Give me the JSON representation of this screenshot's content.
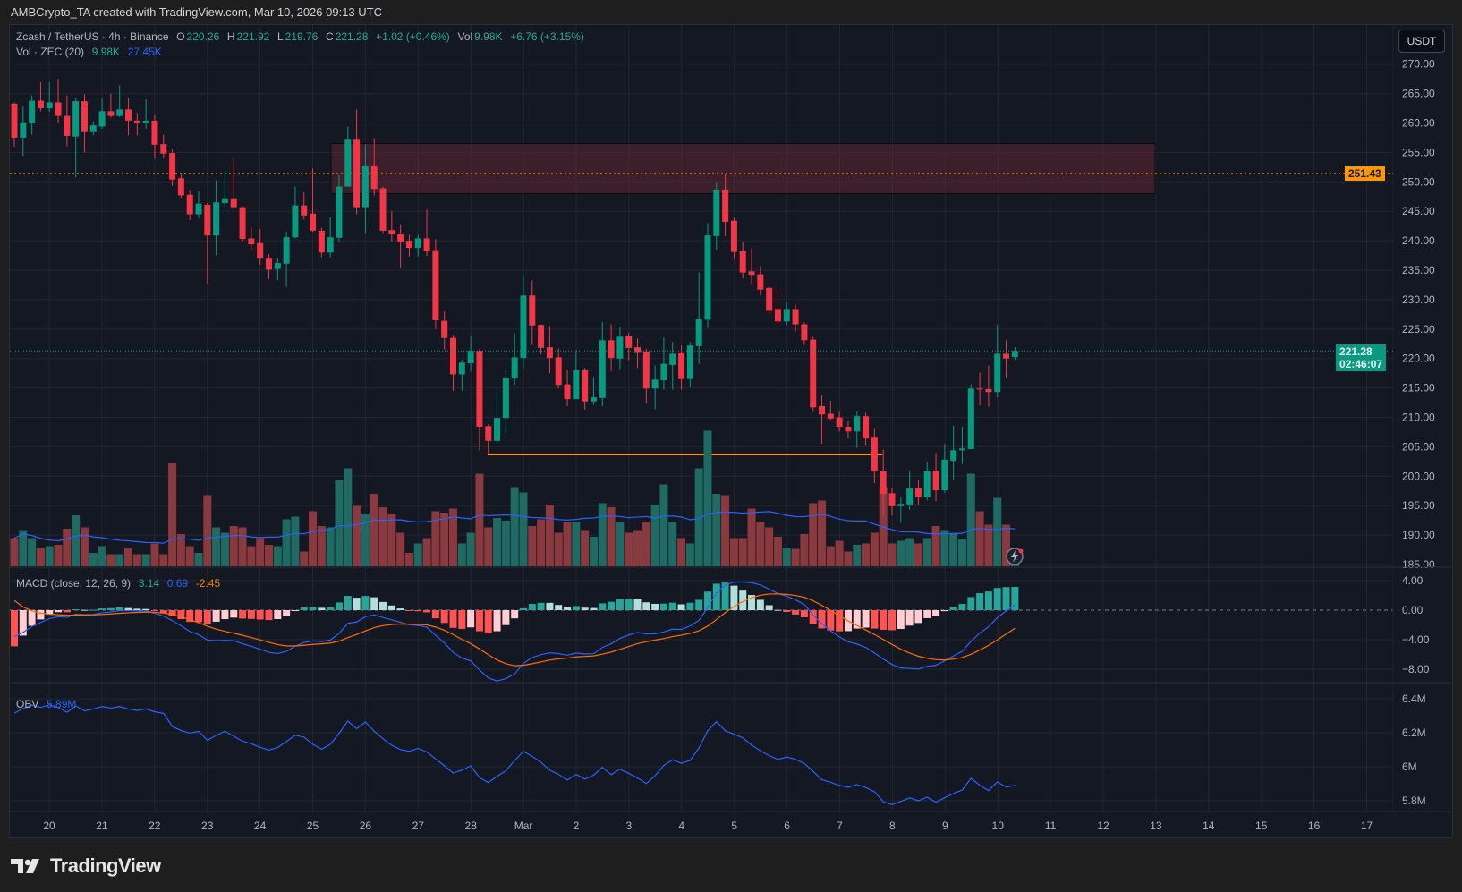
{
  "attribution": "AMBCrypto_TA created with TradingView.com, Mar 10, 2026 09:13 UTC",
  "legend": {
    "symbol": "Zcash / TetherUS · 4h · Binance",
    "o_label": "O",
    "o": "220.26",
    "h_label": "H",
    "h": "221.92",
    "l_label": "L",
    "l": "219.76",
    "c_label": "C",
    "c": "221.28",
    "change": "+1.02 (+0.46%)",
    "vol_label": "Vol",
    "vol": "9.98K",
    "vol_change": "+6.76 (+3.15%)",
    "vol_study": "Vol · ZEC (20)",
    "vol_value": "9.98K",
    "vol_ma": "27.45K"
  },
  "macd_legend": {
    "label": "MACD (close, 12, 26, 9)",
    "hist": "3.14",
    "macd": "0.69",
    "signal": "-2.45"
  },
  "obv_legend": {
    "label": "OBV",
    "value": "5.89M"
  },
  "currency_button": "USDT",
  "price_labels": {
    "hline": "251.43",
    "last": "221.28",
    "countdown": "02:46:07"
  },
  "brand": "TradingView",
  "colors": {
    "up": "#089981",
    "down": "#f23645",
    "vol_up": "#1f6b63",
    "vol_down": "#8a3a3e",
    "vol_ma": "#2962ff",
    "macd": "#2962ff",
    "signal": "#ff6d00",
    "obv": "#2962ff",
    "hline": "#ff9800",
    "zone": "#4a2230",
    "last_price": "#089981"
  },
  "chart_data": {
    "type": "candlestick",
    "interval": "4h",
    "price_axis": {
      "ticks": [
        "270.00",
        "265.00",
        "260.00",
        "255.00",
        "250.00",
        "245.00",
        "240.00",
        "235.00",
        "230.00",
        "225.00",
        "220.00",
        "215.00",
        "210.00",
        "205.00",
        "200.00",
        "195.00",
        "190.00",
        "185.00"
      ],
      "range": [
        185,
        270
      ]
    },
    "macd_axis": {
      "ticks": [
        "4.00",
        "0.00",
        "-4.00",
        "-8.00"
      ],
      "range": [
        -10,
        5
      ]
    },
    "obv_axis": {
      "ticks": [
        "6.4M",
        "6.2M",
        "6M",
        "5.8M"
      ],
      "range": [
        5.75,
        6.45
      ]
    },
    "time_axis": [
      "20",
      "21",
      "22",
      "23",
      "24",
      "25",
      "26",
      "27",
      "28",
      "Mar",
      "2",
      "3",
      "4",
      "5",
      "6",
      "7",
      "8",
      "9",
      "10",
      "11",
      "12",
      "13",
      "14",
      "15",
      "16",
      "17"
    ],
    "ohlc": [
      [
        263.3,
        263.5,
        256,
        257.5
      ],
      [
        257.5,
        262.8,
        254.4,
        260.1
      ],
      [
        260,
        264.7,
        258,
        263.8
      ],
      [
        263.8,
        266.9,
        262,
        262.5
      ],
      [
        262.5,
        266.9,
        261.9,
        263.5
      ],
      [
        263.5,
        267.5,
        260,
        261.2
      ],
      [
        261.2,
        264.7,
        256,
        257.8
      ],
      [
        257.7,
        264.3,
        250.8,
        263.7
      ],
      [
        263.7,
        264.9,
        255,
        258.6
      ],
      [
        258.6,
        260.3,
        257.9,
        259.6
      ],
      [
        259.4,
        264.2,
        259,
        262
      ],
      [
        262,
        265,
        260.9,
        261.2
      ],
      [
        261.2,
        266.4,
        261,
        262.3
      ],
      [
        262.3,
        264.2,
        257.9,
        260.4
      ],
      [
        260.4,
        261.7,
        257.9,
        260
      ],
      [
        260,
        264,
        259,
        260.4
      ],
      [
        260.4,
        261.3,
        253.9,
        256.3
      ],
      [
        256.4,
        258,
        254,
        254.8
      ],
      [
        254.9,
        255.5,
        249.3,
        250.4
      ],
      [
        250.6,
        251.3,
        247.3,
        247.7
      ],
      [
        247.8,
        248.6,
        243.5,
        244.5
      ],
      [
        244.5,
        248.4,
        243.8,
        246.3
      ],
      [
        246.1,
        246.4,
        232.7,
        240.9
      ],
      [
        240.9,
        250.3,
        237.5,
        246.5
      ],
      [
        246.4,
        252.3,
        245.4,
        247.2
      ],
      [
        247.2,
        254,
        245.3,
        245.7
      ],
      [
        245.7,
        245.9,
        239.7,
        240.3
      ],
      [
        240.4,
        242.3,
        238.5,
        239.4
      ],
      [
        239.6,
        242,
        235.9,
        237.1
      ],
      [
        237.1,
        237.7,
        233.5,
        235.1
      ],
      [
        235.2,
        237.1,
        233.3,
        236.2
      ],
      [
        236.1,
        241.5,
        232.2,
        240.6
      ],
      [
        240.6,
        249.2,
        240.4,
        246
      ],
      [
        246,
        248.2,
        243.6,
        244.3
      ],
      [
        244.6,
        252.3,
        241.5,
        241.7
      ],
      [
        241.7,
        242.2,
        237.2,
        238
      ],
      [
        238,
        244,
        237.2,
        240.6
      ],
      [
        240.5,
        251.2,
        239.7,
        249.2
      ],
      [
        249.2,
        259.4,
        249.2,
        257.3
      ],
      [
        257.3,
        262.3,
        244.5,
        245.7
      ],
      [
        245.7,
        256.4,
        241.3,
        252.8
      ],
      [
        252.8,
        257.4,
        247.7,
        248.8
      ],
      [
        248.9,
        249.2,
        241.3,
        241.7
      ],
      [
        241.8,
        245,
        239.8,
        241.1
      ],
      [
        241.2,
        242.8,
        235.4,
        239.8
      ],
      [
        240,
        241,
        237.3,
        238.8
      ],
      [
        238.8,
        241,
        237.3,
        240.4
      ],
      [
        240.4,
        245.3,
        237.4,
        238.3
      ],
      [
        238.4,
        240.3,
        225,
        226.5
      ],
      [
        226.4,
        228,
        221.5,
        223.5
      ],
      [
        223.5,
        224,
        214.5,
        217.3
      ],
      [
        217.3,
        219.8,
        214.5,
        219.3
      ],
      [
        219.2,
        223.8,
        217.8,
        221.3
      ],
      [
        221.3,
        221.6,
        204.4,
        208.4
      ],
      [
        208.5,
        208.8,
        203.8,
        206
      ],
      [
        206,
        214.7,
        205.5,
        209.9
      ],
      [
        209.9,
        218.4,
        207.2,
        216.7
      ],
      [
        216.6,
        224.3,
        215.5,
        220.2
      ],
      [
        220.1,
        233.9,
        218.3,
        230.7
      ],
      [
        230.7,
        233.3,
        222.3,
        225.6
      ],
      [
        225.7,
        225.8,
        220.7,
        221.8
      ],
      [
        221.9,
        225.5,
        217.5,
        220.1
      ],
      [
        220.2,
        221.7,
        214.9,
        215.5
      ],
      [
        215.6,
        218.1,
        211.9,
        213.1
      ],
      [
        213.1,
        221.4,
        213.1,
        218
      ],
      [
        218,
        218.4,
        211.3,
        212.7
      ],
      [
        212.7,
        216.9,
        212.1,
        213.4
      ],
      [
        213.3,
        226.2,
        211.9,
        223.1
      ],
      [
        223.1,
        225.8,
        217.8,
        220.1
      ],
      [
        220,
        225.4,
        218.2,
        223.7
      ],
      [
        223.8,
        224.4,
        219.7,
        221.8
      ],
      [
        221.9,
        223.4,
        218.4,
        221.1
      ],
      [
        221.2,
        221.6,
        212.5,
        214.9
      ],
      [
        214.9,
        218.8,
        211.4,
        216.4
      ],
      [
        216.3,
        223.6,
        214.7,
        219.1
      ],
      [
        218.9,
        222.8,
        214.7,
        220.8
      ],
      [
        221,
        222.2,
        214.7,
        216.5
      ],
      [
        216.5,
        222.8,
        215.2,
        222.2
      ],
      [
        222.1,
        234.6,
        219.1,
        226.7
      ],
      [
        226.6,
        243,
        225.2,
        240.9
      ],
      [
        240.8,
        250,
        238.5,
        248.7
      ],
      [
        248.7,
        251.3,
        240.8,
        243.2
      ],
      [
        243.4,
        244,
        237,
        238.1
      ],
      [
        238.3,
        239.8,
        233.6,
        234.6
      ],
      [
        234.8,
        238.7,
        232.7,
        234.2
      ],
      [
        234.3,
        235.7,
        230.8,
        231.7
      ],
      [
        232,
        232,
        227.5,
        228.1
      ],
      [
        228.4,
        232,
        225.5,
        226.3
      ],
      [
        226.3,
        229.5,
        225.7,
        228.4
      ],
      [
        228.4,
        229.1,
        224.6,
        225.8
      ],
      [
        225.8,
        226.1,
        222.3,
        223.1
      ],
      [
        223.2,
        223.7,
        211.1,
        211.7
      ],
      [
        211.9,
        213.7,
        205.5,
        210.5
      ],
      [
        210.6,
        212.8,
        209.6,
        209.8
      ],
      [
        210,
        211.1,
        207.6,
        208.4
      ],
      [
        208.4,
        209.5,
        206.4,
        207.6
      ],
      [
        207.6,
        211.1,
        204.8,
        210.2
      ],
      [
        210.2,
        210.8,
        205.3,
        206.4
      ],
      [
        206.7,
        208.2,
        198.8,
        200.8
      ],
      [
        200.9,
        204.5,
        193.3,
        197
      ],
      [
        197.1,
        198,
        193.3,
        194.9
      ],
      [
        194.9,
        196.5,
        192.1,
        195.3
      ],
      [
        195.2,
        200.8,
        194.3,
        197.9
      ],
      [
        197.9,
        199.4,
        195.2,
        196.4
      ],
      [
        196.4,
        202.5,
        195.9,
        200.9
      ],
      [
        200.9,
        204,
        195.8,
        197.6
      ],
      [
        197.6,
        205.5,
        197.2,
        202.8
      ],
      [
        202.6,
        208.6,
        199.4,
        204.4
      ],
      [
        204.4,
        208.4,
        202.1,
        204.7
      ],
      [
        204.6,
        215.6,
        204.6,
        214.9
      ],
      [
        214.9,
        217.6,
        212,
        214.8
      ],
      [
        214.8,
        218.8,
        211.8,
        214.3
      ],
      [
        214.3,
        225.7,
        213.4,
        220.8
      ],
      [
        220.8,
        223.1,
        216.7,
        220
      ],
      [
        220.26,
        221.92,
        219.76,
        221.28
      ]
    ],
    "volume_k": [
      21,
      27,
      21,
      14,
      15,
      16,
      28,
      38,
      29,
      10,
      15,
      9,
      9,
      14,
      9,
      9,
      17,
      9,
      77,
      24,
      15,
      10,
      53,
      29,
      25,
      30,
      29,
      15,
      21,
      16,
      15,
      35,
      37,
      11,
      41,
      30,
      29,
      64,
      73,
      45,
      39,
      54,
      44,
      39,
      25,
      10,
      17,
      21,
      41,
      40,
      43,
      17,
      25,
      69,
      29,
      36,
      34,
      59,
      55,
      30,
      35,
      46,
      25,
      33,
      33,
      27,
      22,
      47,
      44,
      33,
      25,
      27,
      33,
      46,
      61,
      33,
      21,
      17,
      73,
      101,
      54,
      53,
      21,
      21,
      43,
      33,
      29,
      22,
      14,
      13,
      24,
      47,
      49,
      15,
      19,
      11,
      16,
      17,
      25,
      59,
      17,
      19,
      21,
      17,
      21,
      30,
      27,
      25,
      20,
      69,
      41,
      31,
      51,
      31,
      9.98
    ],
    "resistance_zone": [
      248,
      256.5
    ],
    "horizontal_line": 251.43,
    "support_line": 203.7
  }
}
